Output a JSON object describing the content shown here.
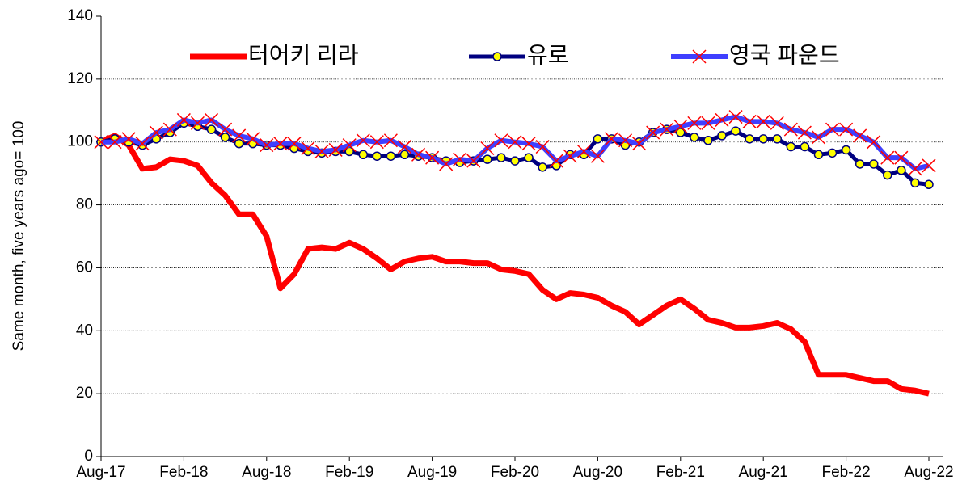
{
  "chart_data": {
    "type": "line",
    "y_label": "Same month, five years ago= 100",
    "categories": [
      "Aug-17",
      null,
      null,
      null,
      null,
      null,
      "Feb-18",
      null,
      null,
      null,
      null,
      null,
      "Aug-18",
      null,
      null,
      null,
      null,
      null,
      "Feb-19",
      null,
      null,
      null,
      null,
      null,
      "Aug-19",
      null,
      null,
      null,
      null,
      null,
      "Feb-20",
      null,
      null,
      null,
      null,
      null,
      "Aug-20",
      null,
      null,
      null,
      null,
      null,
      "Feb-21",
      null,
      null,
      null,
      null,
      null,
      "Aug-21",
      null,
      null,
      null,
      null,
      null,
      "Feb-22",
      null,
      null,
      null,
      null,
      null,
      "Aug-22"
    ],
    "series": [
      {
        "name": "터어키 리라",
        "color": "#ff0000",
        "values": [
          100,
          102,
          99,
          91.5,
          92,
          94.5,
          94,
          92.5,
          87,
          83,
          77,
          77,
          70,
          53.5,
          58,
          66,
          66.5,
          66,
          68,
          66,
          63,
          59.5,
          62,
          63,
          63.5,
          62,
          62,
          61.5,
          61.5,
          59.5,
          59,
          58,
          53,
          50,
          52,
          51.5,
          50.5,
          48,
          46,
          42,
          45,
          48,
          50,
          47,
          43.5,
          42.5,
          41,
          41,
          41.5,
          42.5,
          40.5,
          36.5,
          26,
          26,
          26,
          25,
          24,
          24,
          21.5,
          21,
          20
        ]
      },
      {
        "name": "유로",
        "color": "#000080",
        "values": [
          100,
          101,
          100,
          99,
          101,
          103,
          106,
          105,
          104,
          101.5,
          99.5,
          99.5,
          99,
          99,
          98,
          97,
          96.5,
          97,
          97,
          96,
          95.5,
          95.5,
          96,
          95.5,
          95,
          94,
          93.5,
          94,
          94.5,
          95,
          94,
          95,
          92,
          92.5,
          96,
          96,
          101,
          101,
          99,
          100,
          103,
          104,
          103,
          101.5,
          100.5,
          102,
          103.5,
          101,
          101,
          101,
          98.5,
          98.5,
          96,
          96.5,
          97.5,
          93,
          93,
          89.5,
          91,
          87,
          86.5
        ]
      },
      {
        "name": "영국 파운드",
        "color": "#3f3fff",
        "values": [
          100,
          100,
          101,
          99.5,
          103,
          104,
          107,
          106,
          107,
          104,
          102,
          101,
          99,
          99.5,
          99.5,
          98,
          97,
          97.5,
          99,
          100.5,
          100,
          100.5,
          98.5,
          96,
          95,
          93,
          94.5,
          94,
          98,
          100.5,
          100,
          99.5,
          98.5,
          94,
          95.5,
          97,
          95.5,
          101,
          100.5,
          99.5,
          103,
          104,
          105,
          106,
          106,
          107,
          108,
          106.5,
          106.5,
          106,
          104,
          103,
          101.5,
          104,
          104,
          102,
          100,
          95,
          95,
          91.5,
          92.5
        ]
      }
    ],
    "ylim": [
      0,
      140
    ],
    "yticks": [
      0,
      20,
      40,
      60,
      80,
      100,
      120,
      140
    ],
    "grid": true
  }
}
